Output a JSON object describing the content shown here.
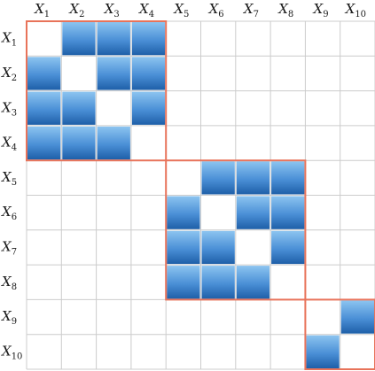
{
  "variables": [
    {
      "base": "X",
      "sub": "1"
    },
    {
      "base": "X",
      "sub": "2"
    },
    {
      "base": "X",
      "sub": "3"
    },
    {
      "base": "X",
      "sub": "4"
    },
    {
      "base": "X",
      "sub": "5"
    },
    {
      "base": "X",
      "sub": "6"
    },
    {
      "base": "X",
      "sub": "7"
    },
    {
      "base": "X",
      "sub": "8"
    },
    {
      "base": "X",
      "sub": "9"
    },
    {
      "base": "X",
      "sub": "10"
    }
  ],
  "matrix": [
    [
      0,
      1,
      1,
      1,
      0,
      0,
      0,
      0,
      0,
      0
    ],
    [
      1,
      0,
      1,
      1,
      0,
      0,
      0,
      0,
      0,
      0
    ],
    [
      1,
      1,
      0,
      1,
      0,
      0,
      0,
      0,
      0,
      0
    ],
    [
      1,
      1,
      1,
      0,
      0,
      0,
      0,
      0,
      0,
      0
    ],
    [
      0,
      0,
      0,
      0,
      0,
      1,
      1,
      1,
      0,
      0
    ],
    [
      0,
      0,
      0,
      0,
      1,
      0,
      1,
      1,
      0,
      0
    ],
    [
      0,
      0,
      0,
      0,
      1,
      1,
      0,
      1,
      0,
      0
    ],
    [
      0,
      0,
      0,
      0,
      1,
      1,
      1,
      0,
      0,
      0
    ],
    [
      0,
      0,
      0,
      0,
      0,
      0,
      0,
      0,
      0,
      1
    ],
    [
      0,
      0,
      0,
      0,
      0,
      0,
      0,
      0,
      1,
      0
    ]
  ],
  "blocks": [
    {
      "start": 0,
      "end": 3
    },
    {
      "start": 4,
      "end": 7
    },
    {
      "start": 8,
      "end": 9
    }
  ],
  "colors": {
    "cell_top": "#8cc4f0",
    "cell_mid": "#4a8fd6",
    "cell_bottom": "#1e5fa8",
    "grid": "#cccccc",
    "block_border": "#e8735a",
    "label": "#1a1a1a"
  }
}
